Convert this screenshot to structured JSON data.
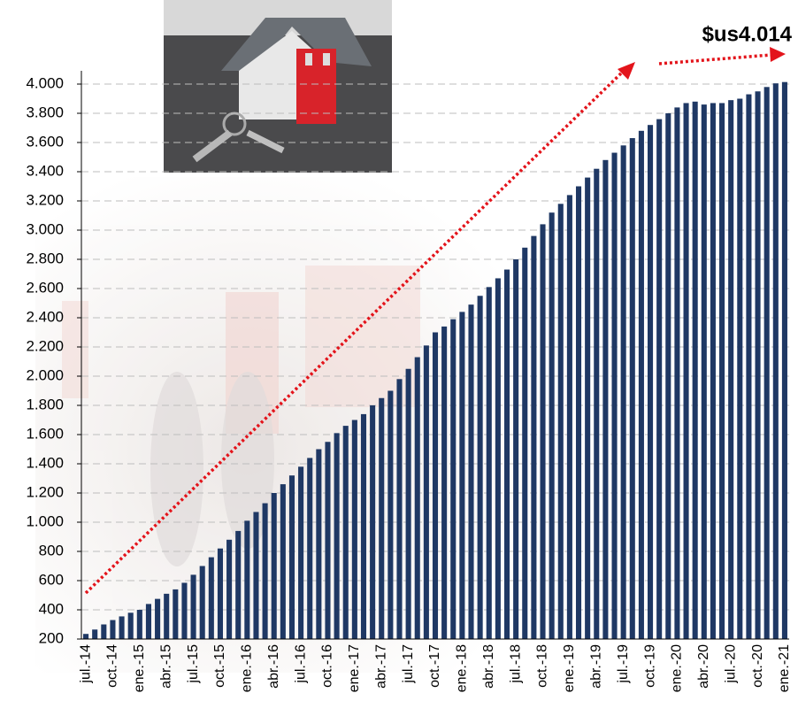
{
  "chart_data": {
    "type": "bar",
    "annotation": "$us4.014",
    "color": "#1f3864",
    "grid": true,
    "ylim": [
      200,
      4100
    ],
    "yticks": [
      200,
      400,
      600,
      800,
      {
        "value": 1000,
        "label": "1.000"
      },
      {
        "value": 1200,
        "label": "1.200"
      },
      {
        "value": 1400,
        "label": "1.400"
      },
      {
        "value": 1600,
        "label": "1.600"
      },
      {
        "value": 1800,
        "label": "1.800"
      },
      {
        "value": 2000,
        "label": "2.000"
      },
      {
        "value": 2200,
        "label": "2.200"
      },
      {
        "value": 2400,
        "label": "2.400"
      },
      {
        "value": 2600,
        "label": "2.600"
      },
      {
        "value": 2800,
        "label": "2.800"
      },
      {
        "value": 3000,
        "label": "3.000"
      },
      {
        "value": 3200,
        "label": "3.200"
      },
      {
        "value": 3400,
        "label": "3.400"
      },
      {
        "value": 3600,
        "label": "3.600"
      },
      {
        "value": 3800,
        "label": "3.800"
      },
      {
        "value": 4000,
        "label": "4.000"
      }
    ],
    "categories": [
      "jul.-14",
      null,
      null,
      "oct.-14",
      null,
      null,
      "ene.-15",
      null,
      null,
      "abr.-15",
      null,
      null,
      "jul.-15",
      null,
      null,
      "oct.-15",
      null,
      null,
      "ene.-16",
      null,
      null,
      "abr.-16",
      null,
      null,
      "jul.-16",
      null,
      null,
      "oct.-16",
      null,
      null,
      "ene.-17",
      null,
      null,
      "abr.-17",
      null,
      null,
      "jul.-17",
      null,
      null,
      "oct.-17",
      null,
      null,
      "ene.-18",
      null,
      null,
      "abr.-18",
      null,
      null,
      "jul.-18",
      null,
      null,
      "oct.-18",
      null,
      null,
      "ene.-19",
      null,
      null,
      "abr.-19",
      null,
      null,
      "jul.-19",
      null,
      null,
      "oct.-19",
      null,
      null,
      "ene.-20",
      null,
      null,
      "abr.-20",
      null,
      null,
      "jul.-20",
      null,
      null,
      "oct.-20",
      null,
      null,
      "ene.-21"
    ],
    "values": [
      235,
      265,
      300,
      330,
      355,
      380,
      400,
      440,
      475,
      510,
      540,
      585,
      640,
      700,
      760,
      820,
      880,
      940,
      1010,
      1070,
      1130,
      1200,
      1260,
      1320,
      1380,
      1440,
      1500,
      1550,
      1610,
      1660,
      1700,
      1740,
      1800,
      1850,
      1900,
      1980,
      2050,
      2130,
      2210,
      2300,
      2340,
      2390,
      2440,
      2490,
      2550,
      2610,
      2670,
      2730,
      2800,
      2880,
      2960,
      3040,
      3120,
      3180,
      3240,
      3300,
      3360,
      3420,
      3480,
      3530,
      3580,
      3630,
      3680,
      3720,
      3760,
      3800,
      3840,
      3870,
      3880,
      3860,
      3870,
      3870,
      3890,
      3900,
      3930,
      3950,
      3980,
      4005,
      4014
    ]
  }
}
